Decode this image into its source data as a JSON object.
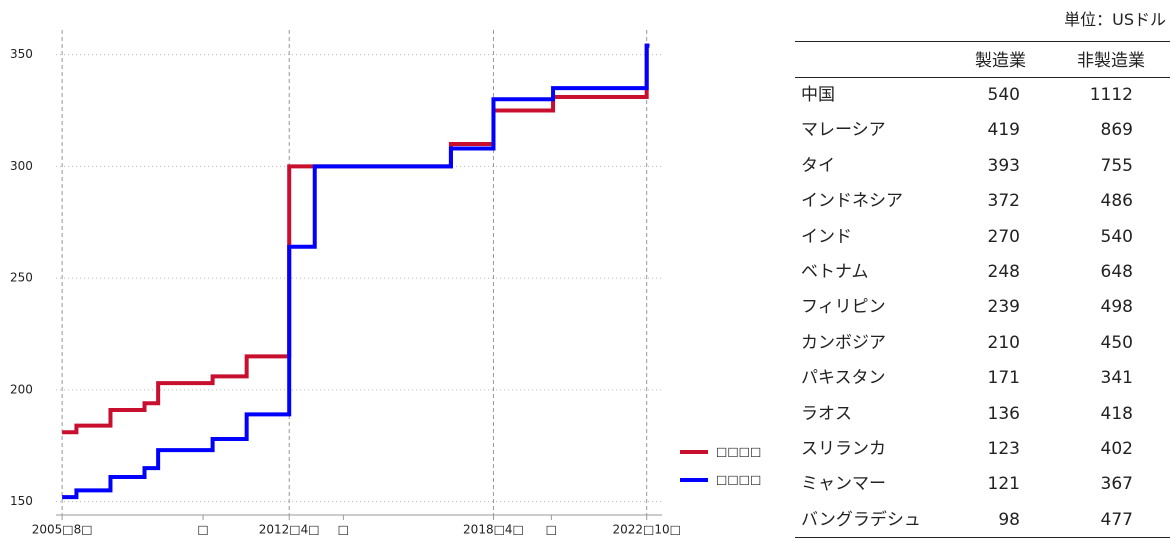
{
  "chart_data": {
    "type": "step",
    "x": [
      2005.58,
      2006.0,
      2007.0,
      2008.0,
      2008.4,
      2010.0,
      2011.0,
      2012.25,
      2013.0,
      2017.0,
      2018.25,
      2020.0,
      2022.75,
      2022.83
    ],
    "series": [
      {
        "name": "□□□□",
        "color": "#c8102e",
        "values": [
          181,
          184,
          191,
          194,
          203,
          206,
          215,
          300,
          300,
          310,
          325,
          331,
          354,
          354
        ]
      },
      {
        "name": "□□□□",
        "color": "#0000ff",
        "values": [
          152,
          155,
          161,
          165,
          173,
          178,
          189,
          264,
          300,
          308,
          330,
          335,
          354,
          354
        ]
      }
    ],
    "xlim": [
      2005.4,
      2023.2
    ],
    "xticks": [
      {
        "value": 2005.58,
        "label": "2005□8□"
      },
      {
        "value": 2009.72,
        "label": "□"
      },
      {
        "value": 2012.25,
        "label": "2012□4□"
      },
      {
        "value": 2013.84,
        "label": "□"
      },
      {
        "value": 2018.25,
        "label": "2018□4□"
      },
      {
        "value": 2019.95,
        "label": "□"
      },
      {
        "value": 2022.75,
        "label": "2022□10□"
      }
    ],
    "vlines": [
      2005.58,
      2012.25,
      2018.25,
      2022.75
    ],
    "ylim": [
      144,
      361
    ],
    "yticks": [
      150,
      200,
      250,
      300,
      350
    ],
    "grid": true
  },
  "table": {
    "unit": "単位：USドル",
    "columns": [
      "製造業",
      "非製造業"
    ],
    "rows": [
      [
        "中国",
        540,
        1112
      ],
      [
        "マレーシア",
        419,
        869
      ],
      [
        "タイ",
        393,
        755
      ],
      [
        "インドネシア",
        372,
        486
      ],
      [
        "インド",
        270,
        540
      ],
      [
        "ベトナム",
        248,
        648
      ],
      [
        "フィリピン",
        239,
        498
      ],
      [
        "カンボジア",
        210,
        450
      ],
      [
        "パキスタン",
        171,
        341
      ],
      [
        "ラオス",
        136,
        418
      ],
      [
        "スリランカ",
        123,
        402
      ],
      [
        "ミャンマー",
        121,
        367
      ],
      [
        "バングラデシュ",
        98,
        477
      ]
    ]
  }
}
